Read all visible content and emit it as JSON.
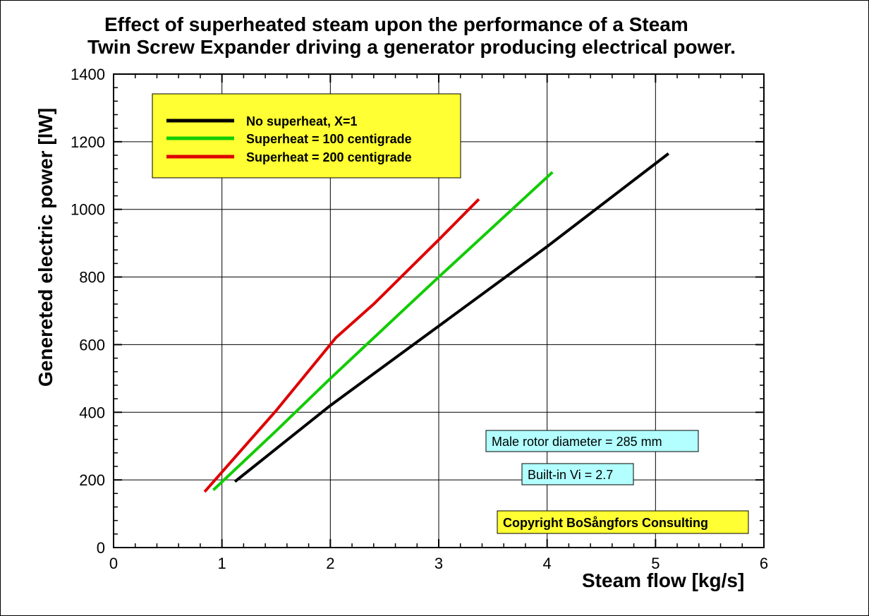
{
  "chart_data": {
    "type": "line",
    "title_lines": [
      "Effect of superheated steam upon the performance of a Steam",
      "Twin Screw Expander driving a generator producing electrical power."
    ],
    "xlabel": "Steam flow [kg/s]",
    "ylabel": "Genereted electric power [lW]",
    "xlim": [
      0,
      6
    ],
    "ylim": [
      0,
      1400
    ],
    "x_ticks": [
      0,
      1,
      2,
      3,
      4,
      5,
      6
    ],
    "y_ticks": [
      0,
      200,
      400,
      600,
      800,
      1000,
      1200,
      1400
    ],
    "grid": true,
    "legend_position": "top-left",
    "series": [
      {
        "name": "No superheat, X=1",
        "color": "#000000",
        "x": [
          1.12,
          2.0,
          3.0,
          4.0,
          5.12
        ],
        "y": [
          195,
          420,
          655,
          890,
          1165
        ]
      },
      {
        "name": "Superheat = 100 centigrade",
        "color": "#11cc00",
        "x": [
          0.92,
          1.5,
          2.0,
          3.0,
          4.05
        ],
        "y": [
          170,
          345,
          500,
          800,
          1110
        ]
      },
      {
        "name": "Superheat = 200 centigrade",
        "color": "#dd0000",
        "x": [
          0.84,
          1.5,
          2.05,
          2.4,
          3.0,
          3.37
        ],
        "y": [
          165,
          405,
          620,
          720,
          910,
          1030
        ]
      }
    ],
    "annotations": [
      "Male rotor diameter = 285 mm",
      "Built-in Vi = 2.7",
      "Copyright BoSångfors Consulting"
    ],
    "colors": {
      "legend_bg": "#ffff33",
      "note_bg": "#b3ffff",
      "copyright_bg": "#ffff33"
    }
  }
}
